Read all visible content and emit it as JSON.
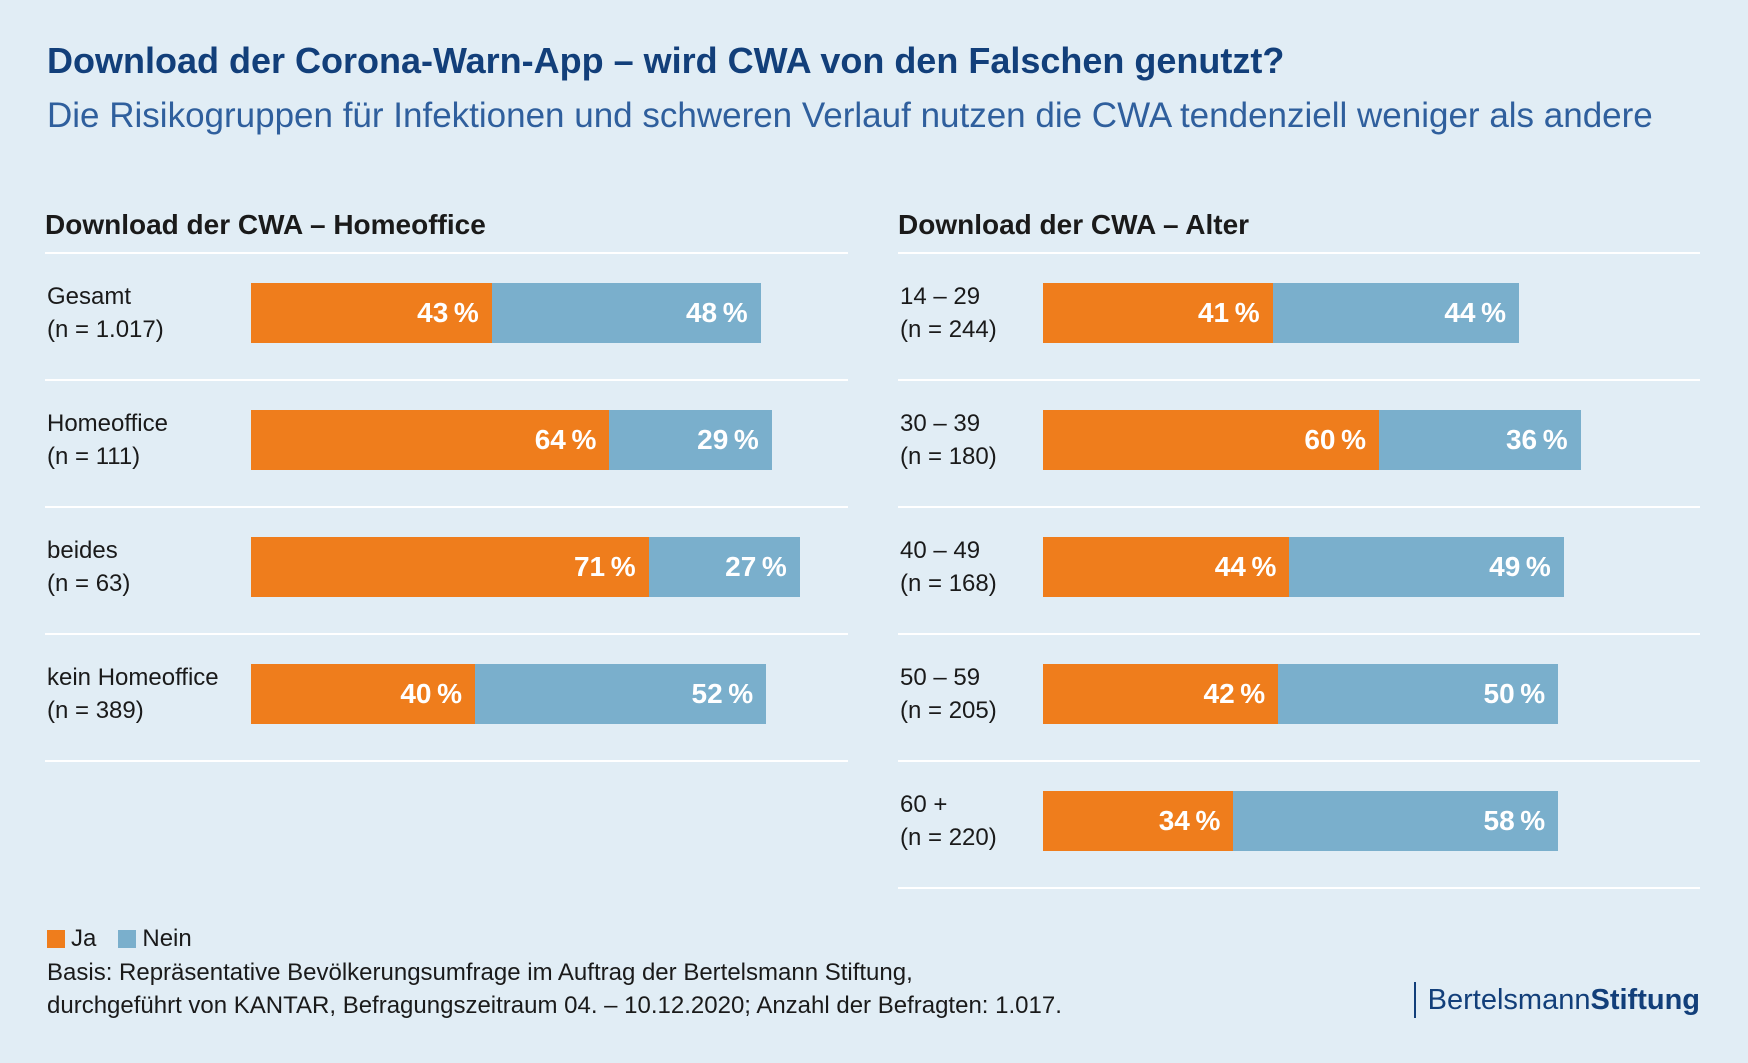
{
  "title": "Download der Corona-Warn-App – wird CWA von den Falschen genutzt?",
  "subtitle": "Die Risikogruppen für Infektionen und schweren Verlauf nutzen die CWA tendenziell weniger als andere",
  "colors": {
    "ja": "#ef7d1c",
    "nein": "#7aafcc",
    "title": "#123f7a",
    "background": "#e1edf5"
  },
  "chart_data": [
    {
      "type": "bar",
      "orientation": "horizontal",
      "stacked": true,
      "title": "Download der CWA – Homeoffice",
      "categories": [
        "Gesamt",
        "Homeoffice",
        "beides",
        "kein Homeoffice"
      ],
      "sample_sizes": [
        "(n = 1.017)",
        "(n = 111)",
        "(n = 63)",
        "(n = 389)"
      ],
      "series": [
        {
          "name": "Ja",
          "values": [
            43,
            64,
            71,
            40
          ]
        },
        {
          "name": "Nein",
          "values": [
            48,
            29,
            27,
            52
          ]
        }
      ],
      "xlim": [
        0,
        100
      ]
    },
    {
      "type": "bar",
      "orientation": "horizontal",
      "stacked": true,
      "title": "Download der CWA – Alter",
      "categories": [
        "14 – 29",
        "30 – 39",
        "40 – 49",
        "50 – 59",
        "60 +"
      ],
      "sample_sizes": [
        "(n = 244)",
        "(n = 180)",
        "(n = 168)",
        "(n = 205)",
        "(n = 220)"
      ],
      "series": [
        {
          "name": "Ja",
          "values": [
            41,
            60,
            44,
            42,
            34
          ]
        },
        {
          "name": "Nein",
          "values": [
            44,
            36,
            49,
            50,
            58
          ]
        }
      ],
      "xlim": [
        0,
        100
      ]
    }
  ],
  "legend": {
    "ja": "Ja",
    "nein": "Nein"
  },
  "basis": {
    "line1": "Basis: Repräsentative Bevölkerungsumfrage im Auftrag der Bertelsmann Stiftung,",
    "line2": "durchgeführt von KANTAR, Befragungszeitraum 04. – 10.12.2020; Anzahl der Befragten: 1.017."
  },
  "logo": {
    "part1": "Bertelsmann",
    "part2": "Stiftung"
  }
}
